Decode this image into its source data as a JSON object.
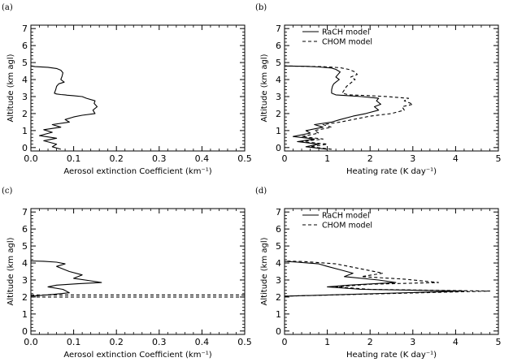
{
  "chart_data": [
    {
      "type": "line",
      "panel_label": "(a)",
      "xlabel": "Aerosol extinction Coefficient (km⁻¹)",
      "ylabel": "Altitude (km agl)",
      "xlim": [
        0,
        0.5
      ],
      "ylim": [
        -0.2,
        7.2
      ],
      "xticks": [
        "0.0",
        "0.1",
        "0.2",
        "0.3",
        "0.4",
        "0.5"
      ],
      "yticks": [
        "0",
        "1",
        "2",
        "3",
        "4",
        "5",
        "6",
        "7"
      ],
      "legend": [],
      "series": [
        {
          "style": "solid",
          "x": [
            0.07,
            0.05,
            0.06,
            0.03,
            0.06,
            0.02,
            0.05,
            0.03,
            0.07,
            0.05,
            0.09,
            0.08,
            0.1,
            0.12,
            0.15,
            0.145,
            0.155,
            0.148,
            0.15,
            0.13,
            0.12,
            0.1,
            0.085,
            0.08,
            0.07,
            0.06,
            0.055,
            0.058,
            0.06,
            0.065,
            0.078,
            0.07,
            0.073,
            0.075,
            0.07,
            0.06,
            0.04,
            0.01,
            0.0
          ],
          "y": [
            -0.1,
            0.05,
            0.2,
            0.4,
            0.55,
            0.7,
            0.9,
            1.05,
            1.2,
            1.35,
            1.5,
            1.65,
            1.8,
            1.9,
            2.0,
            2.2,
            2.4,
            2.6,
            2.75,
            2.9,
            3.0,
            3.05,
            3.08,
            3.1,
            3.12,
            3.15,
            3.2,
            3.4,
            3.6,
            3.75,
            3.85,
            4.0,
            4.2,
            4.4,
            4.55,
            4.65,
            4.72,
            4.76,
            4.8
          ]
        }
      ]
    },
    {
      "type": "line",
      "panel_label": "(b)",
      "xlabel": "Heating rate (K day⁻¹)",
      "ylabel": "Altitude (km agl)",
      "xlim": [
        0,
        5
      ],
      "ylim": [
        -0.2,
        7.2
      ],
      "xticks": [
        "0",
        "1",
        "2",
        "3",
        "4",
        "5"
      ],
      "yticks": [
        "0",
        "1",
        "2",
        "3",
        "4",
        "5",
        "6",
        "7"
      ],
      "legend": [
        {
          "label": "RaCH model",
          "style": "solid"
        },
        {
          "label": "CHOM model",
          "style": "dashed"
        }
      ],
      "series": [
        {
          "name": "RaCH model",
          "style": "solid",
          "x": [
            1.0,
            0.5,
            0.8,
            0.3,
            0.7,
            0.2,
            0.6,
            0.5,
            0.9,
            0.7,
            1.1,
            1.3,
            1.6,
            1.9,
            2.2,
            2.1,
            2.25,
            2.15,
            2.2,
            1.8,
            1.5,
            1.2,
            1.1,
            1.1,
            1.12,
            1.15,
            1.2,
            1.28,
            1.2,
            1.25,
            1.3,
            1.2,
            1.1,
            0.8,
            0.5,
            0.0
          ],
          "y": [
            -0.1,
            0.05,
            0.2,
            0.35,
            0.5,
            0.65,
            0.85,
            1.0,
            1.2,
            1.35,
            1.5,
            1.65,
            1.85,
            2.0,
            2.2,
            2.4,
            2.55,
            2.75,
            2.9,
            3.0,
            3.05,
            3.1,
            3.2,
            3.4,
            3.6,
            3.75,
            3.85,
            4.0,
            4.15,
            4.3,
            4.45,
            4.6,
            4.68,
            4.74,
            4.78,
            4.8
          ]
        },
        {
          "name": "CHOM model",
          "style": "dashed",
          "x": [
            1.1,
            0.6,
            1.0,
            0.4,
            0.9,
            0.4,
            0.8,
            0.7,
            1.1,
            0.9,
            1.3,
            1.6,
            2.0,
            2.5,
            2.8,
            2.75,
            3.0,
            2.8,
            2.9,
            2.4,
            2.0,
            1.5,
            1.35,
            1.4,
            1.45,
            1.55,
            1.65,
            1.55,
            1.7,
            1.65,
            1.5,
            1.3,
            0.9,
            0.0
          ],
          "y": [
            -0.1,
            0.05,
            0.2,
            0.35,
            0.5,
            0.65,
            0.85,
            1.0,
            1.2,
            1.35,
            1.5,
            1.65,
            1.85,
            2.0,
            2.2,
            2.4,
            2.55,
            2.75,
            2.9,
            3.0,
            3.05,
            3.1,
            3.2,
            3.4,
            3.6,
            3.8,
            4.0,
            4.15,
            4.3,
            4.45,
            4.6,
            4.7,
            4.76,
            4.8
          ]
        }
      ]
    },
    {
      "type": "line",
      "panel_label": "(c)",
      "xlabel": "Aerosol extinction Coefficient (km⁻¹)",
      "ylabel": "Altitude (km agl)",
      "xlim": [
        0,
        0.5
      ],
      "ylim": [
        -0.2,
        7.2
      ],
      "xticks": [
        "0.0",
        "0.1",
        "0.2",
        "0.3",
        "0.4",
        "0.5"
      ],
      "yticks": [
        "0",
        "1",
        "2",
        "3",
        "4",
        "5",
        "6",
        "7"
      ],
      "legend": [],
      "series": [
        {
          "style": "solid",
          "x": [
            0.0,
            0.05,
            0.09,
            0.075,
            0.04,
            0.06,
            0.11,
            0.165,
            0.14,
            0.1,
            0.12,
            0.09,
            0.075,
            0.06,
            0.08,
            0.06,
            0.03,
            0.0
          ],
          "y": [
            2.05,
            2.15,
            2.25,
            2.45,
            2.6,
            2.7,
            2.78,
            2.85,
            2.95,
            3.1,
            3.3,
            3.5,
            3.65,
            3.8,
            3.95,
            4.05,
            4.1,
            4.12
          ]
        },
        {
          "style": "dashed",
          "x": [
            0.0,
            0.5
          ],
          "y": [
            2.0,
            2.0
          ]
        },
        {
          "style": "dashed",
          "x": [
            0.0,
            0.5
          ],
          "y": [
            2.12,
            2.12
          ]
        }
      ]
    },
    {
      "type": "line",
      "panel_label": "(d)",
      "xlabel": "Heating rate (K day⁻¹)",
      "ylabel": "Altitude (km agl)",
      "xlim": [
        0,
        5
      ],
      "ylim": [
        -0.2,
        7.2
      ],
      "xticks": [
        "0",
        "1",
        "2",
        "3",
        "4",
        "5"
      ],
      "yticks": [
        "0",
        "1",
        "2",
        "3",
        "4",
        "5",
        "6",
        "7"
      ],
      "legend": [
        {
          "label": "RaCH model",
          "style": "solid"
        },
        {
          "label": "CHOM model",
          "style": "dashed"
        }
      ],
      "series": [
        {
          "name": "RaCH model",
          "style": "solid",
          "x": [
            0.0,
            4.2,
            1.8,
            1.0,
            1.5,
            2.6,
            2.2,
            1.4,
            1.6,
            1.3,
            1.0,
            0.8,
            0.3,
            0.0
          ],
          "y": [
            2.05,
            2.35,
            2.45,
            2.6,
            2.7,
            2.85,
            3.0,
            3.2,
            3.4,
            3.6,
            3.8,
            3.95,
            4.05,
            4.1
          ]
        },
        {
          "name": "CHOM model",
          "style": "dashed",
          "x": [
            0.0,
            4.8,
            2.0,
            1.2,
            2.0,
            3.6,
            2.8,
            1.8,
            2.3,
            1.9,
            1.5,
            1.2,
            0.5,
            0.0
          ],
          "y": [
            2.05,
            2.35,
            2.45,
            2.6,
            2.75,
            2.85,
            3.05,
            3.2,
            3.4,
            3.6,
            3.8,
            3.95,
            4.08,
            4.12
          ]
        }
      ]
    }
  ]
}
